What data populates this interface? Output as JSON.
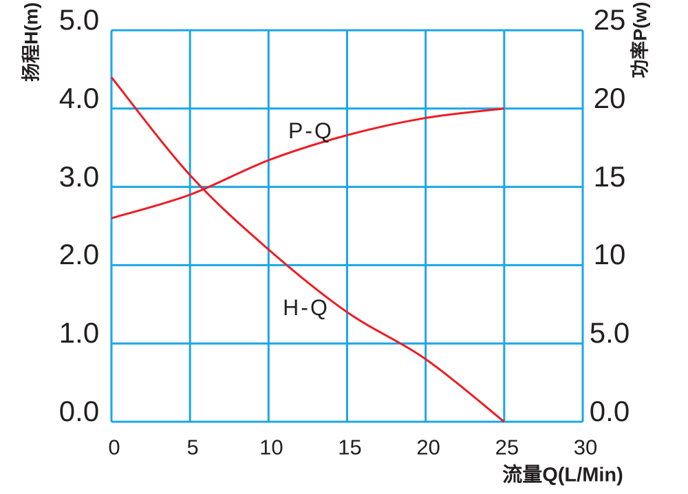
{
  "chart_data": {
    "type": "line",
    "title": "",
    "x": [
      0,
      5,
      10,
      15,
      20,
      25
    ],
    "series": [
      {
        "name": "H-Q",
        "axis": "left",
        "values": [
          4.4,
          3.15,
          2.2,
          1.4,
          0.8,
          0.0
        ]
      },
      {
        "name": "P-Q",
        "axis": "right",
        "values": [
          13.0,
          14.5,
          16.7,
          18.3,
          19.4,
          20.0
        ]
      }
    ],
    "x_axis": {
      "label": "流量Q(L/Min)",
      "min": 0,
      "max": 30,
      "ticks": [
        0,
        5,
        10,
        15,
        20,
        25,
        30
      ],
      "tick_labels": [
        "0",
        "5",
        "10",
        "15",
        "20",
        "25",
        "30"
      ]
    },
    "y_left_axis": {
      "label": "扬程H(m)",
      "min": 0,
      "max": 5,
      "ticks": [
        0,
        1,
        2,
        3,
        4,
        5
      ],
      "tick_labels": [
        "0.0",
        "1.0",
        "2.0",
        "3.0",
        "4.0",
        "5.0"
      ]
    },
    "y_right_axis": {
      "label": "功率P(w)",
      "min": 0,
      "max": 25,
      "ticks": [
        0,
        5,
        10,
        15,
        20,
        25
      ],
      "tick_labels": [
        "0.0",
        "5.0",
        "10",
        "15",
        "20",
        "25"
      ]
    },
    "grid": {
      "on": true,
      "legend_position": "inline-curve-labels"
    }
  },
  "colors": {
    "grid": "#1aa6e8",
    "curve": "#ee1c23",
    "text": "#231f20",
    "background": "#ffffff"
  }
}
